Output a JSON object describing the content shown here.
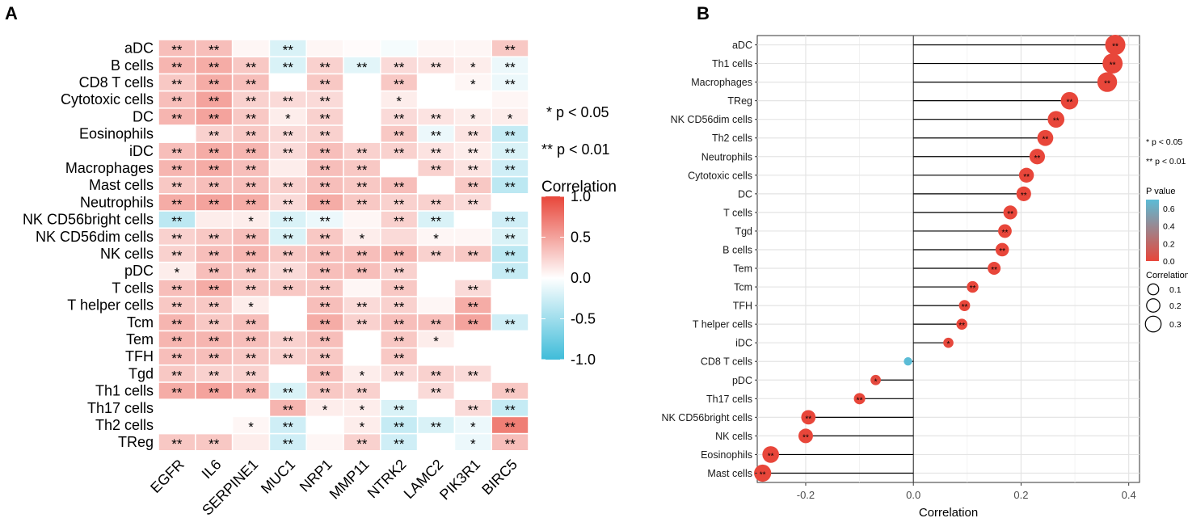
{
  "panel_labels": {
    "a": "A",
    "b": "B"
  },
  "chart_data": [
    {
      "type": "heatmap",
      "title": "",
      "rows": [
        "aDC",
        "B cells",
        "CD8 T cells",
        "Cytotoxic cells",
        "DC",
        "Eosinophils",
        "iDC",
        "Macrophages",
        "Mast cells",
        "Neutrophils",
        "NK CD56bright cells",
        "NK CD56dim cells",
        "NK cells",
        "pDC",
        "T cells",
        "T helper cells",
        "Tcm",
        "Tem",
        "TFH",
        "Tgd",
        "Th1 cells",
        "Th17 cells",
        "Th2 cells",
        "TReg"
      ],
      "columns": [
        "EGFR",
        "IL6",
        "SERPINE1",
        "MUC1",
        "NRP1",
        "MMP11",
        "NTRK2",
        "LAMC2",
        "PIK3R1",
        "BIRC5"
      ],
      "values": [
        [
          0.35,
          0.35,
          0.05,
          -0.2,
          0.05,
          0.02,
          -0.05,
          0.05,
          0.05,
          0.3
        ],
        [
          0.4,
          0.45,
          0.3,
          -0.2,
          0.25,
          -0.15,
          0.2,
          0.15,
          0.1,
          -0.1
        ],
        [
          0.3,
          0.45,
          0.35,
          0.0,
          0.3,
          0.0,
          0.3,
          0.0,
          0.05,
          -0.1
        ],
        [
          0.35,
          0.5,
          0.25,
          0.2,
          0.2,
          0.0,
          0.1,
          0.0,
          0.0,
          0.05
        ],
        [
          0.4,
          0.5,
          0.3,
          0.1,
          0.25,
          0.0,
          0.2,
          0.15,
          0.1,
          0.1
        ],
        [
          0.0,
          0.25,
          0.3,
          0.2,
          0.25,
          0.0,
          0.3,
          -0.1,
          0.15,
          -0.3
        ],
        [
          0.35,
          0.45,
          0.4,
          0.2,
          0.35,
          0.25,
          0.25,
          0.15,
          0.1,
          -0.2
        ],
        [
          0.4,
          0.45,
          0.35,
          0.1,
          0.35,
          0.3,
          0.0,
          0.25,
          0.15,
          -0.25
        ],
        [
          0.3,
          0.35,
          0.35,
          0.25,
          0.35,
          0.3,
          0.35,
          0.0,
          0.3,
          -0.35
        ],
        [
          0.45,
          0.5,
          0.45,
          0.2,
          0.45,
          0.3,
          0.25,
          0.25,
          0.2,
          0.0
        ],
        [
          -0.35,
          0.1,
          0.1,
          -0.2,
          -0.1,
          0.05,
          0.25,
          -0.2,
          0.0,
          -0.25
        ],
        [
          0.25,
          0.3,
          0.35,
          -0.2,
          0.3,
          0.1,
          0.2,
          0.05,
          0.05,
          -0.2
        ],
        [
          0.25,
          0.35,
          0.4,
          0.3,
          0.35,
          0.35,
          0.4,
          0.25,
          0.3,
          -0.35
        ],
        [
          0.1,
          0.35,
          0.3,
          0.2,
          0.35,
          0.35,
          0.25,
          0.0,
          0.0,
          -0.3
        ],
        [
          0.35,
          0.45,
          0.3,
          0.3,
          0.3,
          0.05,
          0.3,
          0.0,
          0.2,
          0.0
        ],
        [
          0.3,
          0.3,
          0.1,
          0.0,
          0.35,
          0.2,
          0.25,
          0.05,
          0.45,
          0.0
        ],
        [
          0.4,
          0.3,
          0.35,
          0.0,
          0.45,
          0.25,
          0.35,
          0.35,
          0.5,
          -0.25
        ],
        [
          0.4,
          0.4,
          0.35,
          0.25,
          0.35,
          0.0,
          0.3,
          0.1,
          0.0,
          0.0
        ],
        [
          0.35,
          0.35,
          0.3,
          0.25,
          0.3,
          0.0,
          0.3,
          0.0,
          0.0,
          0.0
        ],
        [
          0.3,
          0.25,
          0.25,
          0.0,
          0.35,
          0.1,
          0.2,
          0.25,
          0.2,
          0.0
        ],
        [
          0.45,
          0.5,
          0.4,
          -0.2,
          0.3,
          0.25,
          0.0,
          0.2,
          0.0,
          0.3
        ],
        [
          0.0,
          0.0,
          0.0,
          0.4,
          0.1,
          0.1,
          -0.2,
          0.0,
          0.2,
          -0.3
        ],
        [
          0.0,
          0.0,
          0.05,
          -0.25,
          0.0,
          0.1,
          -0.3,
          -0.2,
          -0.1,
          0.7
        ],
        [
          0.3,
          0.3,
          0.1,
          -0.25,
          0.05,
          0.25,
          -0.25,
          0.0,
          -0.1,
          0.35
        ]
      ],
      "significance": [
        [
          "**",
          "**",
          "",
          "**",
          "",
          "",
          "",
          "",
          "",
          "**"
        ],
        [
          "**",
          "**",
          "**",
          "**",
          "**",
          "**",
          "**",
          "**",
          "*",
          "**"
        ],
        [
          "**",
          "**",
          "**",
          "",
          "**",
          "",
          "**",
          "",
          "*",
          "**"
        ],
        [
          "**",
          "**",
          "**",
          "**",
          "**",
          "",
          "*",
          "",
          "",
          ""
        ],
        [
          "**",
          "**",
          "**",
          "*",
          "**",
          "",
          "**",
          "**",
          "*",
          "*"
        ],
        [
          "",
          "**",
          "**",
          "**",
          "**",
          "",
          "**",
          "**",
          "**",
          "**"
        ],
        [
          "**",
          "**",
          "**",
          "**",
          "**",
          "**",
          "**",
          "**",
          "**",
          "**"
        ],
        [
          "**",
          "**",
          "**",
          "",
          "**",
          "**",
          "",
          "**",
          "**",
          "**"
        ],
        [
          "**",
          "**",
          "**",
          "**",
          "**",
          "**",
          "**",
          "",
          "**",
          "**"
        ],
        [
          "**",
          "**",
          "**",
          "**",
          "**",
          "**",
          "**",
          "**",
          "**",
          ""
        ],
        [
          "**",
          "",
          "*",
          "**",
          "**",
          "",
          "**",
          "**",
          "",
          "**"
        ],
        [
          "**",
          "**",
          "**",
          "**",
          "**",
          "*",
          "",
          "*",
          "",
          "**"
        ],
        [
          "**",
          "**",
          "**",
          "**",
          "**",
          "**",
          "**",
          "**",
          "**",
          "**"
        ],
        [
          "*",
          "**",
          "**",
          "**",
          "**",
          "**",
          "**",
          "",
          "",
          "**"
        ],
        [
          "**",
          "**",
          "**",
          "**",
          "**",
          "",
          "**",
          "",
          "**",
          ""
        ],
        [
          "**",
          "**",
          "*",
          "",
          "**",
          "**",
          "**",
          "",
          "**",
          ""
        ],
        [
          "**",
          "**",
          "**",
          "",
          "**",
          "**",
          "**",
          "**",
          "**",
          "**"
        ],
        [
          "**",
          "**",
          "**",
          "**",
          "**",
          "",
          "**",
          "*",
          "",
          ""
        ],
        [
          "**",
          "**",
          "**",
          "**",
          "**",
          "",
          "**",
          "",
          "",
          ""
        ],
        [
          "**",
          "**",
          "**",
          "",
          "**",
          "*",
          "**",
          "**",
          "**",
          ""
        ],
        [
          "**",
          "**",
          "**",
          "**",
          "**",
          "**",
          "",
          "**",
          "",
          "**"
        ],
        [
          "",
          "",
          "",
          "**",
          "*",
          "*",
          "**",
          "",
          "**",
          "**"
        ],
        [
          "",
          "",
          "*",
          "**",
          "",
          "*",
          "**",
          "**",
          "*",
          "**"
        ],
        [
          "**",
          "**",
          "",
          "**",
          "",
          "**",
          "**",
          "",
          "*",
          "**"
        ]
      ],
      "legend": {
        "title": "Correlation",
        "ticks": [
          "1.0",
          "0.5",
          "0.0",
          "-0.5",
          "-1.0"
        ],
        "range": [
          -1.0,
          1.0
        ],
        "sig_notes": [
          "* p < 0.05",
          "** p < 0.01"
        ],
        "colors": {
          "high": "#e8463a",
          "mid": "#ffffff",
          "low": "#3fbcd9"
        }
      }
    },
    {
      "type": "scatter",
      "subtype": "lollipop",
      "xlabel": "Correlation",
      "xlim": [
        -0.29,
        0.42
      ],
      "xticks": [
        "-0.2",
        "0.0",
        "0.2",
        "0.4"
      ],
      "xtick_values": [
        -0.2,
        0.0,
        0.2,
        0.4
      ],
      "grid": true,
      "categories": [
        "aDC",
        "Th1 cells",
        "Macrophages",
        "TReg",
        "NK CD56dim cells",
        "Th2 cells",
        "Neutrophils",
        "Cytotoxic cells",
        "DC",
        "T cells",
        "Tgd",
        "B cells",
        "Tem",
        "Tcm",
        "TFH",
        "T helper cells",
        "iDC",
        "CD8 T cells",
        "pDC",
        "Th17 cells",
        "NK CD56bright cells",
        "NK cells",
        "Eosinophils",
        "Mast cells"
      ],
      "values": [
        0.375,
        0.37,
        0.36,
        0.29,
        0.265,
        0.245,
        0.23,
        0.21,
        0.205,
        0.18,
        0.17,
        0.165,
        0.15,
        0.11,
        0.095,
        0.09,
        0.065,
        -0.01,
        -0.07,
        -0.1,
        -0.195,
        -0.2,
        -0.265,
        -0.28
      ],
      "pvalues": [
        0.0,
        0.0,
        0.0,
        0.0,
        0.0,
        0.0,
        0.0,
        0.0,
        0.0,
        0.0,
        0.0,
        0.0,
        0.0,
        0.0,
        0.0,
        0.0,
        0.01,
        0.7,
        0.02,
        0.0,
        0.0,
        0.0,
        0.0,
        0.0
      ],
      "significance": [
        "**",
        "**",
        "**",
        "**",
        "**",
        "**",
        "**",
        "**",
        "**",
        "**",
        "**",
        "**",
        "**",
        "**",
        "**",
        "**",
        "*",
        "",
        "*",
        "**",
        "**",
        "**",
        "**",
        "**"
      ],
      "legend": {
        "sig_notes": [
          "* p < 0.05",
          "** p < 0.01"
        ],
        "pvalue_title": "P value",
        "pvalue_ticks": [
          "0.6",
          "0.4",
          "0.2",
          "0.0"
        ],
        "pvalue_tick_values": [
          0.6,
          0.4,
          0.2,
          0.0
        ],
        "pvalue_range": [
          0.0,
          0.7
        ],
        "size_title": "Correlation",
        "size_ticks": [
          "0.1",
          "0.2",
          "0.3"
        ],
        "size_tick_values": [
          0.1,
          0.2,
          0.3
        ],
        "colors": {
          "low_p": "#e8463a",
          "high_p": "#5bbcd6",
          "stem": "#000000"
        }
      }
    }
  ]
}
